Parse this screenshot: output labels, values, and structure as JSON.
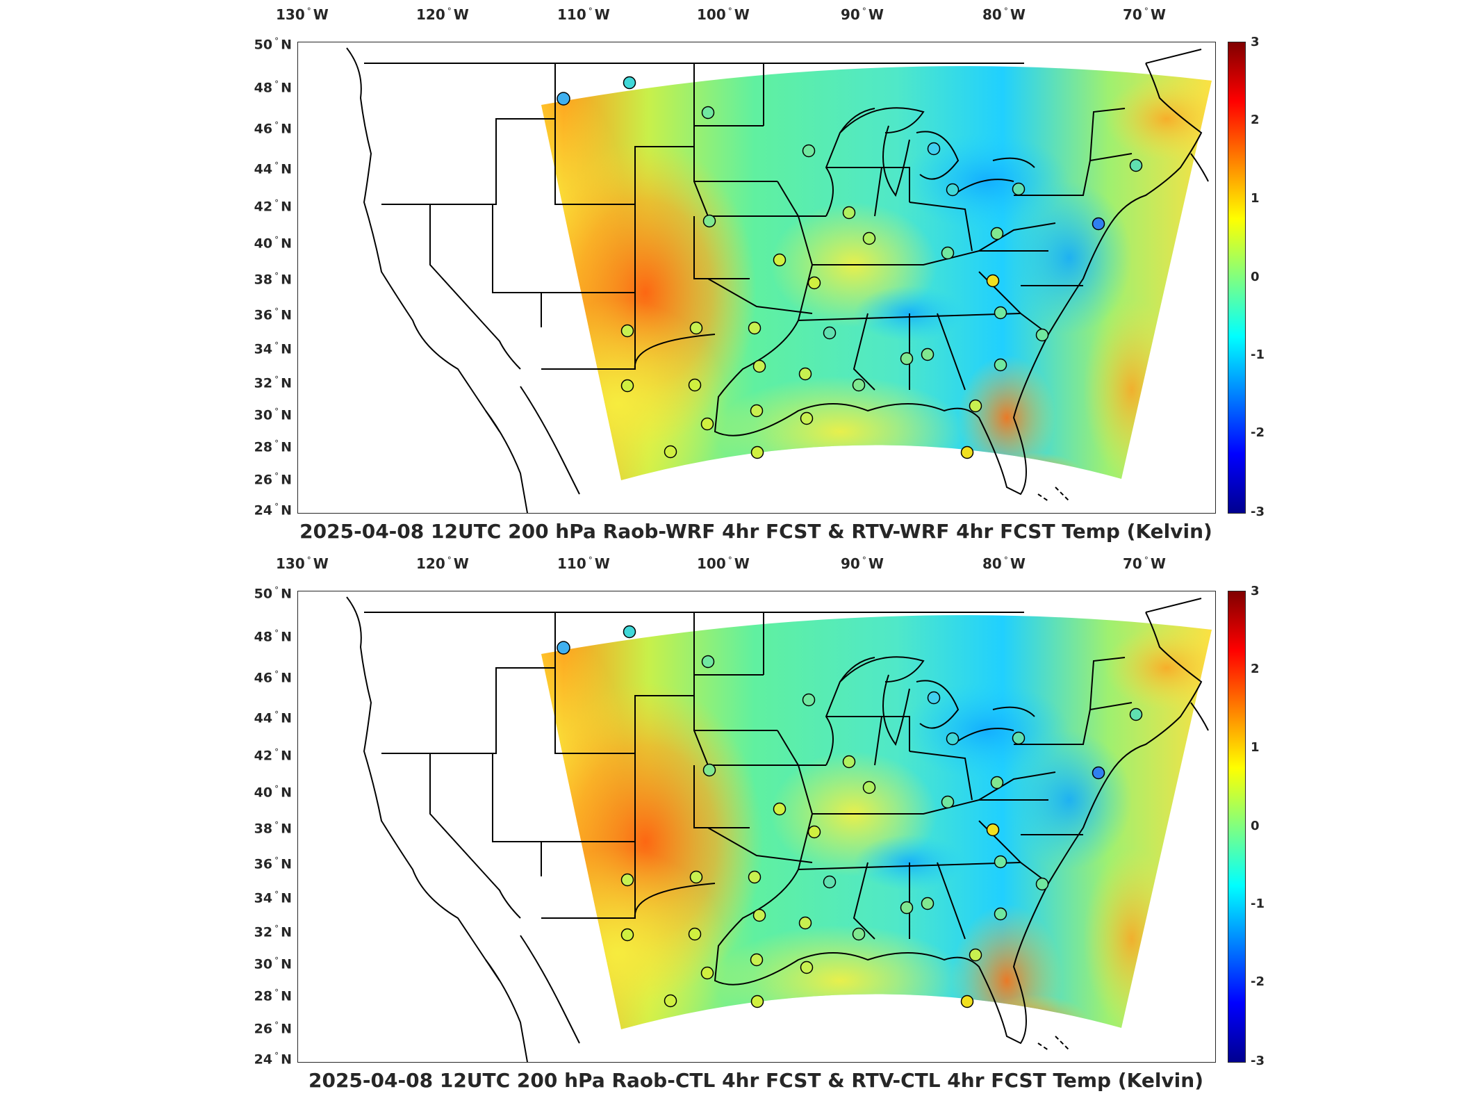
{
  "panels": [
    {
      "title": "2025-04-08 12UTC 200 hPa Raob-WRF 4hr FCST & RTV-WRF 4hr FCST Temp (Kelvin)"
    },
    {
      "title": "2025-04-08 12UTC 200 hPa Raob-CTL 4hr FCST & RTV-CTL 4hr FCST Temp (Kelvin)"
    }
  ],
  "lon_ticks": [
    {
      "deg": "130",
      "dir": "W"
    },
    {
      "deg": "120",
      "dir": "W"
    },
    {
      "deg": "110",
      "dir": "W"
    },
    {
      "deg": "100",
      "dir": "W"
    },
    {
      "deg": "90",
      "dir": "W"
    },
    {
      "deg": "80",
      "dir": "W"
    },
    {
      "deg": "70",
      "dir": "W"
    }
  ],
  "lat_ticks": [
    {
      "deg": "50",
      "dir": "N"
    },
    {
      "deg": "48",
      "dir": "N"
    },
    {
      "deg": "46",
      "dir": "N"
    },
    {
      "deg": "44",
      "dir": "N"
    },
    {
      "deg": "42",
      "dir": "N"
    },
    {
      "deg": "40",
      "dir": "N"
    },
    {
      "deg": "38",
      "dir": "N"
    },
    {
      "deg": "36",
      "dir": "N"
    },
    {
      "deg": "34",
      "dir": "N"
    },
    {
      "deg": "32",
      "dir": "N"
    },
    {
      "deg": "30",
      "dir": "N"
    },
    {
      "deg": "28",
      "dir": "N"
    },
    {
      "deg": "26",
      "dir": "N"
    },
    {
      "deg": "24",
      "dir": "N"
    }
  ],
  "colorbar": {
    "ticks": [
      "3",
      "2",
      "1",
      "0",
      "-1",
      "-2",
      "-3"
    ],
    "range": [
      -3,
      3
    ],
    "colormap": "jet"
  }
}
